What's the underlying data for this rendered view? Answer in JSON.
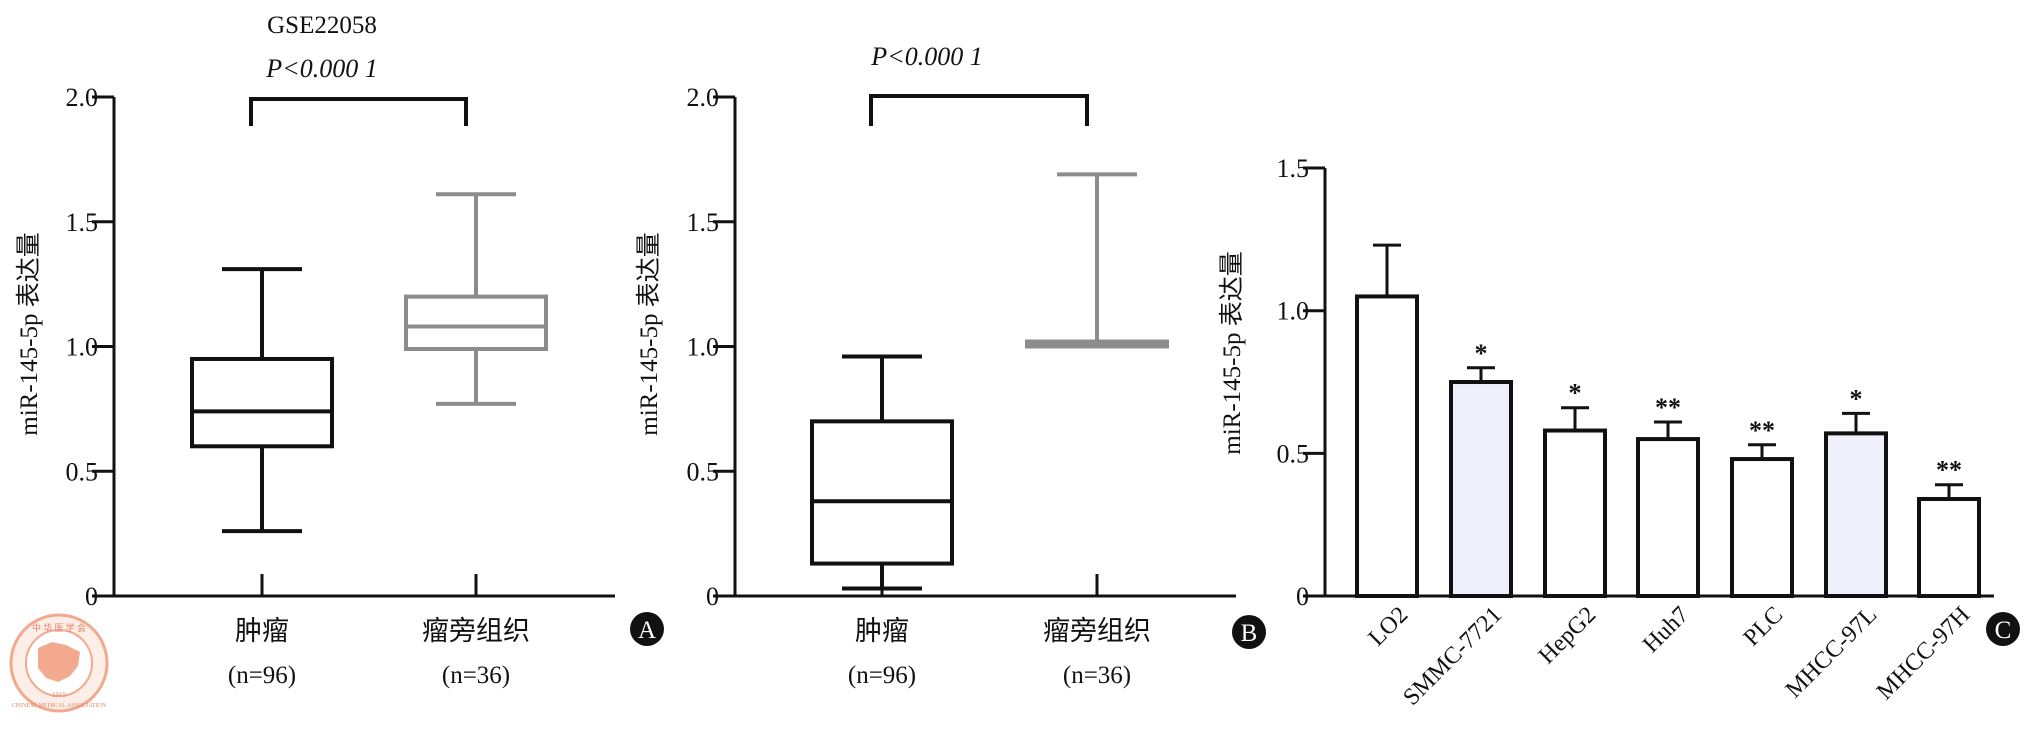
{
  "colors": {
    "ink": "#111111",
    "box_gray": "#8c8c8c",
    "bar_fill_white": "#ffffff",
    "bar_fill_lavender": "#eef0fb",
    "badge": "#111111",
    "logo": "#f2a98e"
  },
  "logo": {
    "icon": "chinese-medical-association-logo",
    "text_top": "中 华 医 学 会",
    "text_ring": "CHINESE MEDICAL ASSOCIATION",
    "year": "1915"
  },
  "chart_data": [
    {
      "id": "A",
      "type": "box",
      "title": "GSE22058",
      "significance": "P<0.000 1",
      "ylabel": "miR-145-5p 表达量",
      "ylim": [
        0,
        2.0
      ],
      "yticks": [
        0,
        0.5,
        1.0,
        1.5,
        2.0
      ],
      "ytick_labels": [
        "0",
        "0.5",
        "1.0",
        "1.5",
        "2.0"
      ],
      "groups": [
        {
          "label": "肿瘤",
          "n_label": "(n=96)",
          "min": 0.26,
          "q1": 0.6,
          "median": 0.74,
          "q3": 0.95,
          "max": 1.31,
          "color": "#111111"
        },
        {
          "label": "瘤旁组织",
          "n_label": "(n=36)",
          "min": 0.77,
          "q1": 0.99,
          "median": 1.08,
          "q3": 1.2,
          "max": 1.61,
          "color": "#8c8c8c"
        }
      ],
      "badge": "A"
    },
    {
      "id": "B",
      "type": "box",
      "title": "",
      "significance": "P<0.000 1",
      "ylabel": "miR-145-5p 表达量",
      "ylim": [
        0,
        2.0
      ],
      "yticks": [
        0,
        0.5,
        1.0,
        1.5,
        2.0
      ],
      "ytick_labels": [
        "0",
        "0.5",
        "1.0",
        "1.5",
        "2.0"
      ],
      "groups": [
        {
          "label": "肿瘤",
          "n_label": "(n=96)",
          "min": 0.03,
          "q1": 0.13,
          "median": 0.38,
          "q3": 0.7,
          "max": 0.96,
          "color": "#111111"
        },
        {
          "label": "瘤旁组织",
          "n_label": "(n=36)",
          "min": 1.0,
          "q1": 1.0,
          "median": 1.01,
          "q3": 1.02,
          "max": 1.69,
          "color": "#8c8c8c"
        }
      ],
      "badge": "B"
    },
    {
      "id": "C",
      "type": "bar",
      "ylabel": "miR-145-5p 表达量",
      "ylim": [
        0,
        1.5
      ],
      "yticks": [
        0,
        0.5,
        1.0,
        1.5
      ],
      "ytick_labels": [
        "0",
        "0.5",
        "1.0",
        "1.5"
      ],
      "categories": [
        "LO2",
        "SMMC-7721",
        "HepG2",
        "Huh7",
        "PLC",
        "MHCC-97L",
        "MHCC-97H"
      ],
      "values": [
        1.05,
        0.75,
        0.58,
        0.55,
        0.48,
        0.57,
        0.34
      ],
      "errors": [
        0.18,
        0.05,
        0.08,
        0.06,
        0.05,
        0.07,
        0.05
      ],
      "marks": [
        "",
        "*",
        "*",
        "**",
        "**",
        "*",
        "**"
      ],
      "fills": [
        "#ffffff",
        "#eef0fb",
        "#ffffff",
        "#ffffff",
        "#ffffff",
        "#eef0fb",
        "#ffffff"
      ],
      "badge": "C"
    }
  ]
}
